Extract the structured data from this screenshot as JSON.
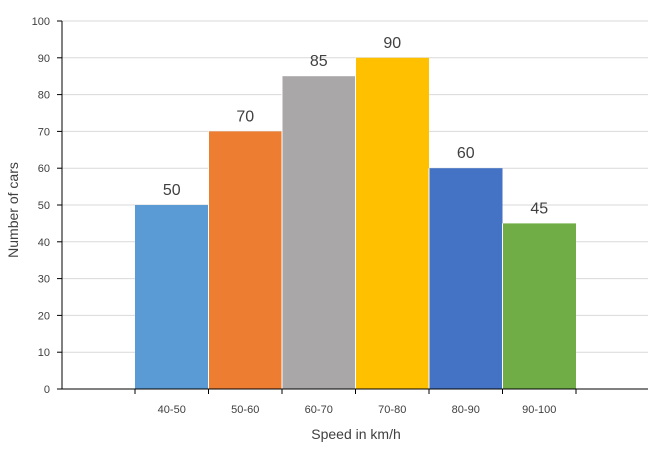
{
  "chart_data": {
    "type": "bar",
    "title": "",
    "xlabel": "Speed in km/h",
    "ylabel": "Number of cars",
    "categories": [
      "40-50",
      "50-60",
      "60-70",
      "70-80",
      "80-90",
      "90-100"
    ],
    "values": [
      50,
      70,
      85,
      90,
      60,
      45
    ],
    "data_labels": [
      "50",
      "70",
      "85",
      "90",
      "60",
      "45"
    ],
    "colors": [
      "#5b9bd5",
      "#ed7d31",
      "#a9a7a7",
      "#ffc000",
      "#4472c4",
      "#70ad47"
    ],
    "ylim": [
      0,
      100
    ],
    "yticks": [
      0,
      10,
      20,
      30,
      40,
      50,
      60,
      70,
      80,
      90,
      100
    ],
    "ytick_labels": [
      "0",
      "10",
      "20",
      "30",
      "40",
      "50",
      "60",
      "70",
      "80",
      "90",
      "100"
    ],
    "grid": true,
    "legend": "none"
  }
}
